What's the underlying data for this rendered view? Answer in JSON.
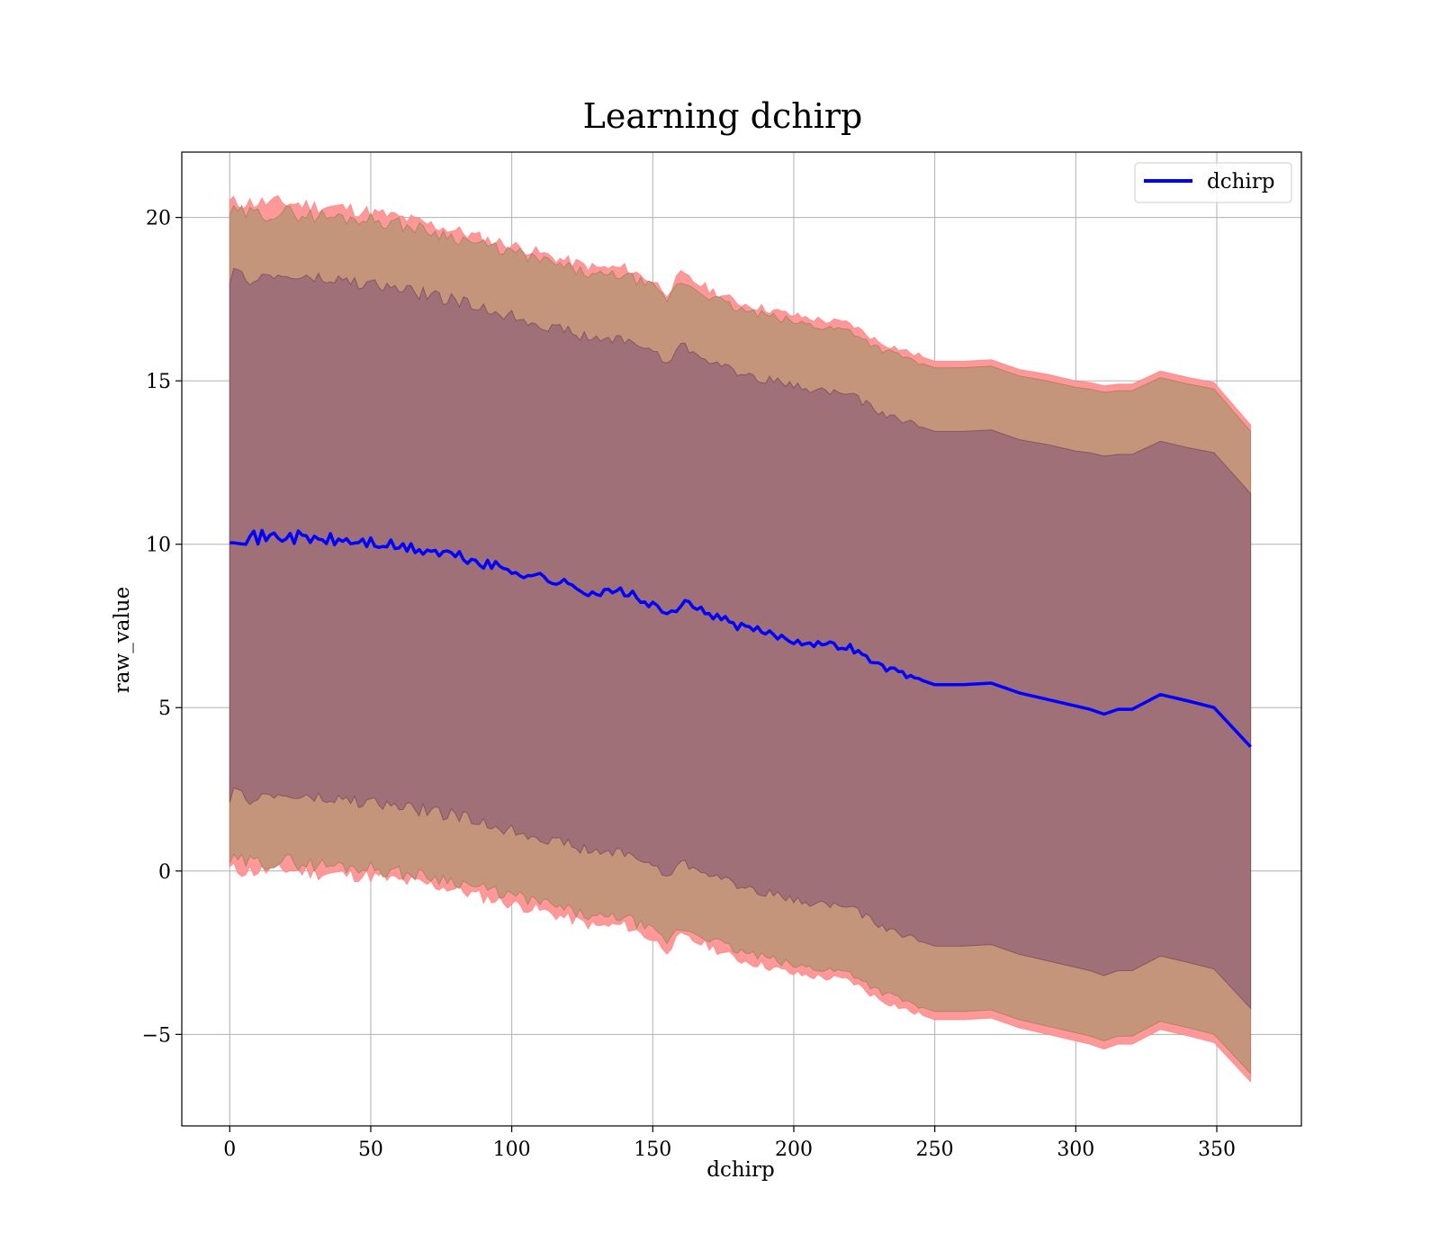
{
  "chart_data": {
    "type": "line",
    "title": "Learning dchirp",
    "xlabel": "dchirp",
    "ylabel": "raw_value",
    "xlim": [
      -17,
      380
    ],
    "ylim": [
      -7.8,
      22
    ],
    "x_ticks": [
      0,
      50,
      100,
      150,
      200,
      250,
      300,
      350
    ],
    "x_tick_labels": [
      "0",
      "50",
      "100",
      "150",
      "200",
      "250",
      "300",
      "350"
    ],
    "y_ticks": [
      -5,
      0,
      5,
      10,
      15,
      20
    ],
    "y_tick_labels": [
      "−5",
      "0",
      "5",
      "10",
      "15",
      "20"
    ],
    "grid": true,
    "legend": {
      "position": "top-right",
      "entries": [
        {
          "label": "dchirp",
          "color": "#0000ff"
        }
      ]
    },
    "colors": {
      "line": "#0000ff",
      "outer_band": "#ff9999",
      "middle_band": "#c4957a",
      "inner_band": "#a07078"
    },
    "series": [
      {
        "name": "dchirp",
        "x": [
          0,
          10,
          20,
          30,
          40,
          50,
          60,
          70,
          80,
          90,
          100,
          110,
          120,
          130,
          140,
          150,
          155,
          160,
          170,
          180,
          190,
          200,
          210,
          220,
          230,
          240,
          250,
          260,
          270,
          280,
          290,
          300,
          305,
          310,
          315,
          320,
          330,
          340,
          349,
          362
        ],
        "values": [
          10.25,
          10.2,
          10.25,
          10.15,
          10.1,
          10.05,
          9.9,
          9.8,
          9.65,
          9.4,
          9.2,
          9.0,
          8.75,
          8.5,
          8.55,
          8.1,
          7.8,
          8.2,
          7.9,
          7.5,
          7.3,
          7.05,
          6.95,
          6.85,
          6.3,
          6.0,
          5.7,
          5.7,
          5.75,
          5.45,
          5.25,
          5.05,
          4.95,
          4.8,
          4.95,
          4.95,
          5.4,
          5.2,
          5.0,
          3.8
        ]
      }
    ],
    "bands": {
      "outer_upper": [
        20.45,
        20.45,
        20.45,
        20.35,
        20.3,
        20.15,
        20.0,
        19.8,
        19.6,
        19.35,
        19.15,
        18.9,
        18.65,
        18.45,
        18.45,
        18.05,
        17.7,
        18.25,
        17.8,
        17.4,
        17.2,
        17.0,
        16.85,
        16.75,
        16.2,
        15.9,
        15.6,
        15.6,
        15.65,
        15.35,
        15.2,
        15.0,
        14.95,
        14.85,
        14.9,
        14.9,
        15.3,
        15.1,
        14.95,
        13.65
      ],
      "middle_upper": [
        20.15,
        20.1,
        20.15,
        20.05,
        20.0,
        19.95,
        19.8,
        19.6,
        19.4,
        19.15,
        18.95,
        18.7,
        18.45,
        18.2,
        18.25,
        17.85,
        17.5,
        18.05,
        17.6,
        17.2,
        17.0,
        16.8,
        16.65,
        16.55,
        16.0,
        15.7,
        15.4,
        15.4,
        15.45,
        15.15,
        15.0,
        14.8,
        14.75,
        14.65,
        14.7,
        14.7,
        15.1,
        14.9,
        14.75,
        13.45
      ],
      "inner_upper": [
        18.2,
        18.15,
        18.2,
        18.1,
        18.05,
        17.95,
        17.8,
        17.65,
        17.45,
        17.2,
        17.0,
        16.75,
        16.5,
        16.25,
        16.3,
        15.9,
        15.55,
        16.1,
        15.65,
        15.25,
        15.05,
        14.85,
        14.7,
        14.6,
        14.05,
        13.75,
        13.45,
        13.45,
        13.5,
        13.2,
        13.05,
        12.85,
        12.8,
        12.7,
        12.75,
        12.75,
        13.15,
        12.95,
        12.8,
        11.55
      ],
      "inner_lower": [
        2.3,
        2.25,
        2.3,
        2.2,
        2.15,
        2.1,
        1.95,
        1.85,
        1.7,
        1.45,
        1.25,
        1.05,
        0.8,
        0.55,
        0.6,
        0.15,
        -0.15,
        0.25,
        -0.05,
        -0.45,
        -0.65,
        -0.9,
        -1.0,
        -1.1,
        -1.65,
        -2.0,
        -2.3,
        -2.3,
        -2.25,
        -2.55,
        -2.75,
        -2.95,
        -3.05,
        -3.2,
        -3.05,
        -3.05,
        -2.6,
        -2.8,
        -3.0,
        -4.2
      ],
      "middle_lower": [
        0.3,
        0.25,
        0.3,
        0.2,
        0.15,
        0.1,
        -0.05,
        -0.15,
        -0.3,
        -0.55,
        -0.75,
        -0.95,
        -1.2,
        -1.45,
        -1.4,
        -1.85,
        -2.15,
        -1.75,
        -2.05,
        -2.45,
        -2.65,
        -2.9,
        -3.0,
        -3.1,
        -3.65,
        -4.0,
        -4.3,
        -4.3,
        -4.25,
        -4.55,
        -4.75,
        -4.95,
        -5.05,
        -5.2,
        -5.05,
        -5.05,
        -4.6,
        -4.8,
        -5.0,
        -6.2
      ],
      "outer_lower": [
        0.05,
        0.0,
        0.05,
        -0.05,
        -0.1,
        -0.15,
        -0.3,
        -0.4,
        -0.55,
        -0.8,
        -1.0,
        -1.2,
        -1.45,
        -1.7,
        -1.65,
        -2.1,
        -2.4,
        -2.0,
        -2.3,
        -2.7,
        -2.9,
        -3.15,
        -3.25,
        -3.35,
        -3.9,
        -4.25,
        -4.55,
        -4.55,
        -4.5,
        -4.8,
        -5.0,
        -5.2,
        -5.3,
        -5.45,
        -5.3,
        -5.3,
        -4.85,
        -5.05,
        -5.25,
        -6.45
      ]
    }
  }
}
